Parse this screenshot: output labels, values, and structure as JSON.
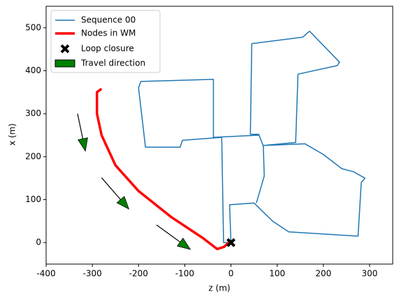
{
  "chart_data": {
    "type": "line",
    "xlabel": "z (m)",
    "ylabel": "x (m)",
    "xlim": [
      -400,
      350
    ],
    "ylim": [
      -50,
      550
    ],
    "xticks": [
      -400,
      -300,
      -200,
      -100,
      0,
      100,
      200,
      300
    ],
    "yticks": [
      0,
      100,
      200,
      300,
      400,
      500
    ],
    "legend": "upper left",
    "series": [
      {
        "name": "Sequence 00",
        "color": "#1f77b4",
        "width": 1.5,
        "x": [
          0,
          -3,
          50,
          90,
          125,
          275,
          282,
          290,
          265,
          240,
          200,
          160,
          70,
          140,
          145,
          230,
          235,
          170,
          155,
          45,
          42,
          60,
          70,
          72,
          55,
          null,
          60,
          -38,
          -38,
          -195,
          -200,
          -185,
          -110,
          -105,
          -20,
          -16,
          0
        ],
        "values": [
          0,
          88,
          92,
          50,
          25,
          15,
          140,
          150,
          165,
          172,
          205,
          230,
          226,
          233,
          392,
          412,
          420,
          492,
          478,
          463,
          252,
          252,
          225,
          155,
          92,
          null,
          250,
          245,
          380,
          375,
          360,
          222,
          222,
          238,
          245,
          0,
          0
        ]
      },
      {
        "name": "Nodes in WM",
        "color": "#ff0000",
        "width": 3.5,
        "x": [
          -280,
          -290,
          -290,
          -280,
          -250,
          -200,
          -130,
          -60,
          -30,
          -15,
          -5
        ],
        "values": [
          358,
          350,
          300,
          250,
          180,
          120,
          60,
          10,
          -15,
          -10,
          0
        ]
      }
    ],
    "loop_closure": {
      "name": "Loop closure",
      "color": "#000000",
      "x": 0,
      "y": 0
    },
    "travel_direction": {
      "name": "Travel direction",
      "color": "#008000",
      "arrows": [
        {
          "x": -332,
          "y": 300,
          "dx": 17,
          "dy": -87
        },
        {
          "x": -280,
          "y": 151,
          "dx": 59,
          "dy": -73
        },
        {
          "x": -161,
          "y": 41,
          "dx": 73,
          "dy": -57
        }
      ]
    }
  }
}
